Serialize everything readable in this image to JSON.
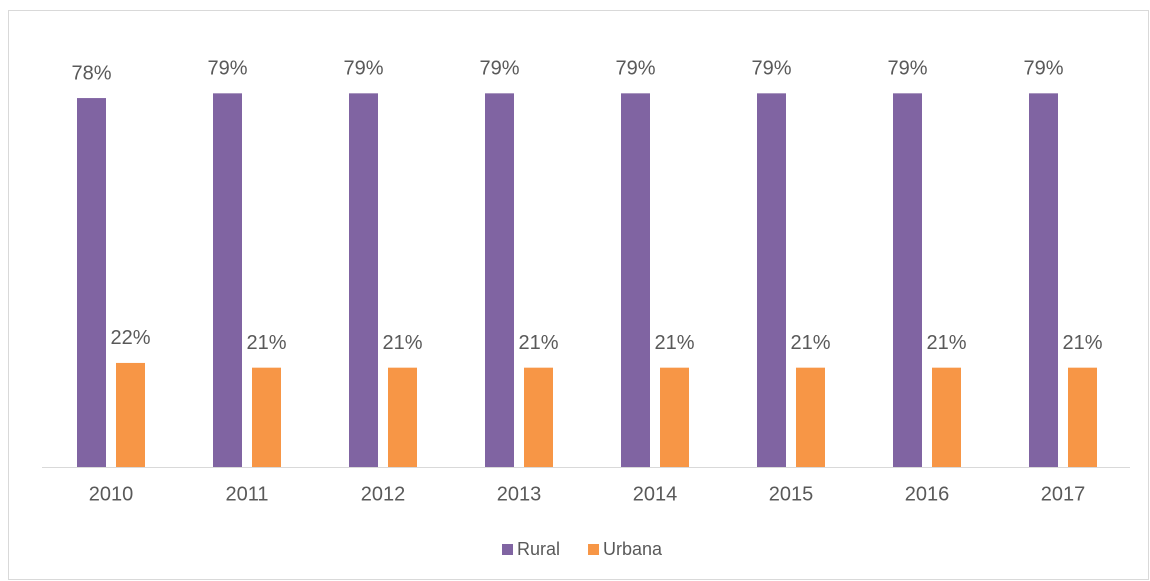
{
  "chart_data": {
    "type": "bar",
    "categories": [
      "2010",
      "2011",
      "2012",
      "2013",
      "2014",
      "2015",
      "2016",
      "2017"
    ],
    "series": [
      {
        "name": "Rural",
        "color": "#8064a2",
        "values": [
          78,
          79,
          79,
          79,
          79,
          79,
          79,
          79
        ],
        "value_labels": [
          "78%",
          "79%",
          "79%",
          "79%",
          "79%",
          "79%",
          "79%",
          "79%"
        ]
      },
      {
        "name": "Urbana",
        "color": "#f79646",
        "values": [
          22,
          21,
          21,
          21,
          21,
          21,
          21,
          21
        ],
        "value_labels": [
          "22%",
          "21%",
          "21%",
          "21%",
          "21%",
          "21%",
          "21%",
          "21%"
        ]
      }
    ],
    "legend": "bottom"
  }
}
